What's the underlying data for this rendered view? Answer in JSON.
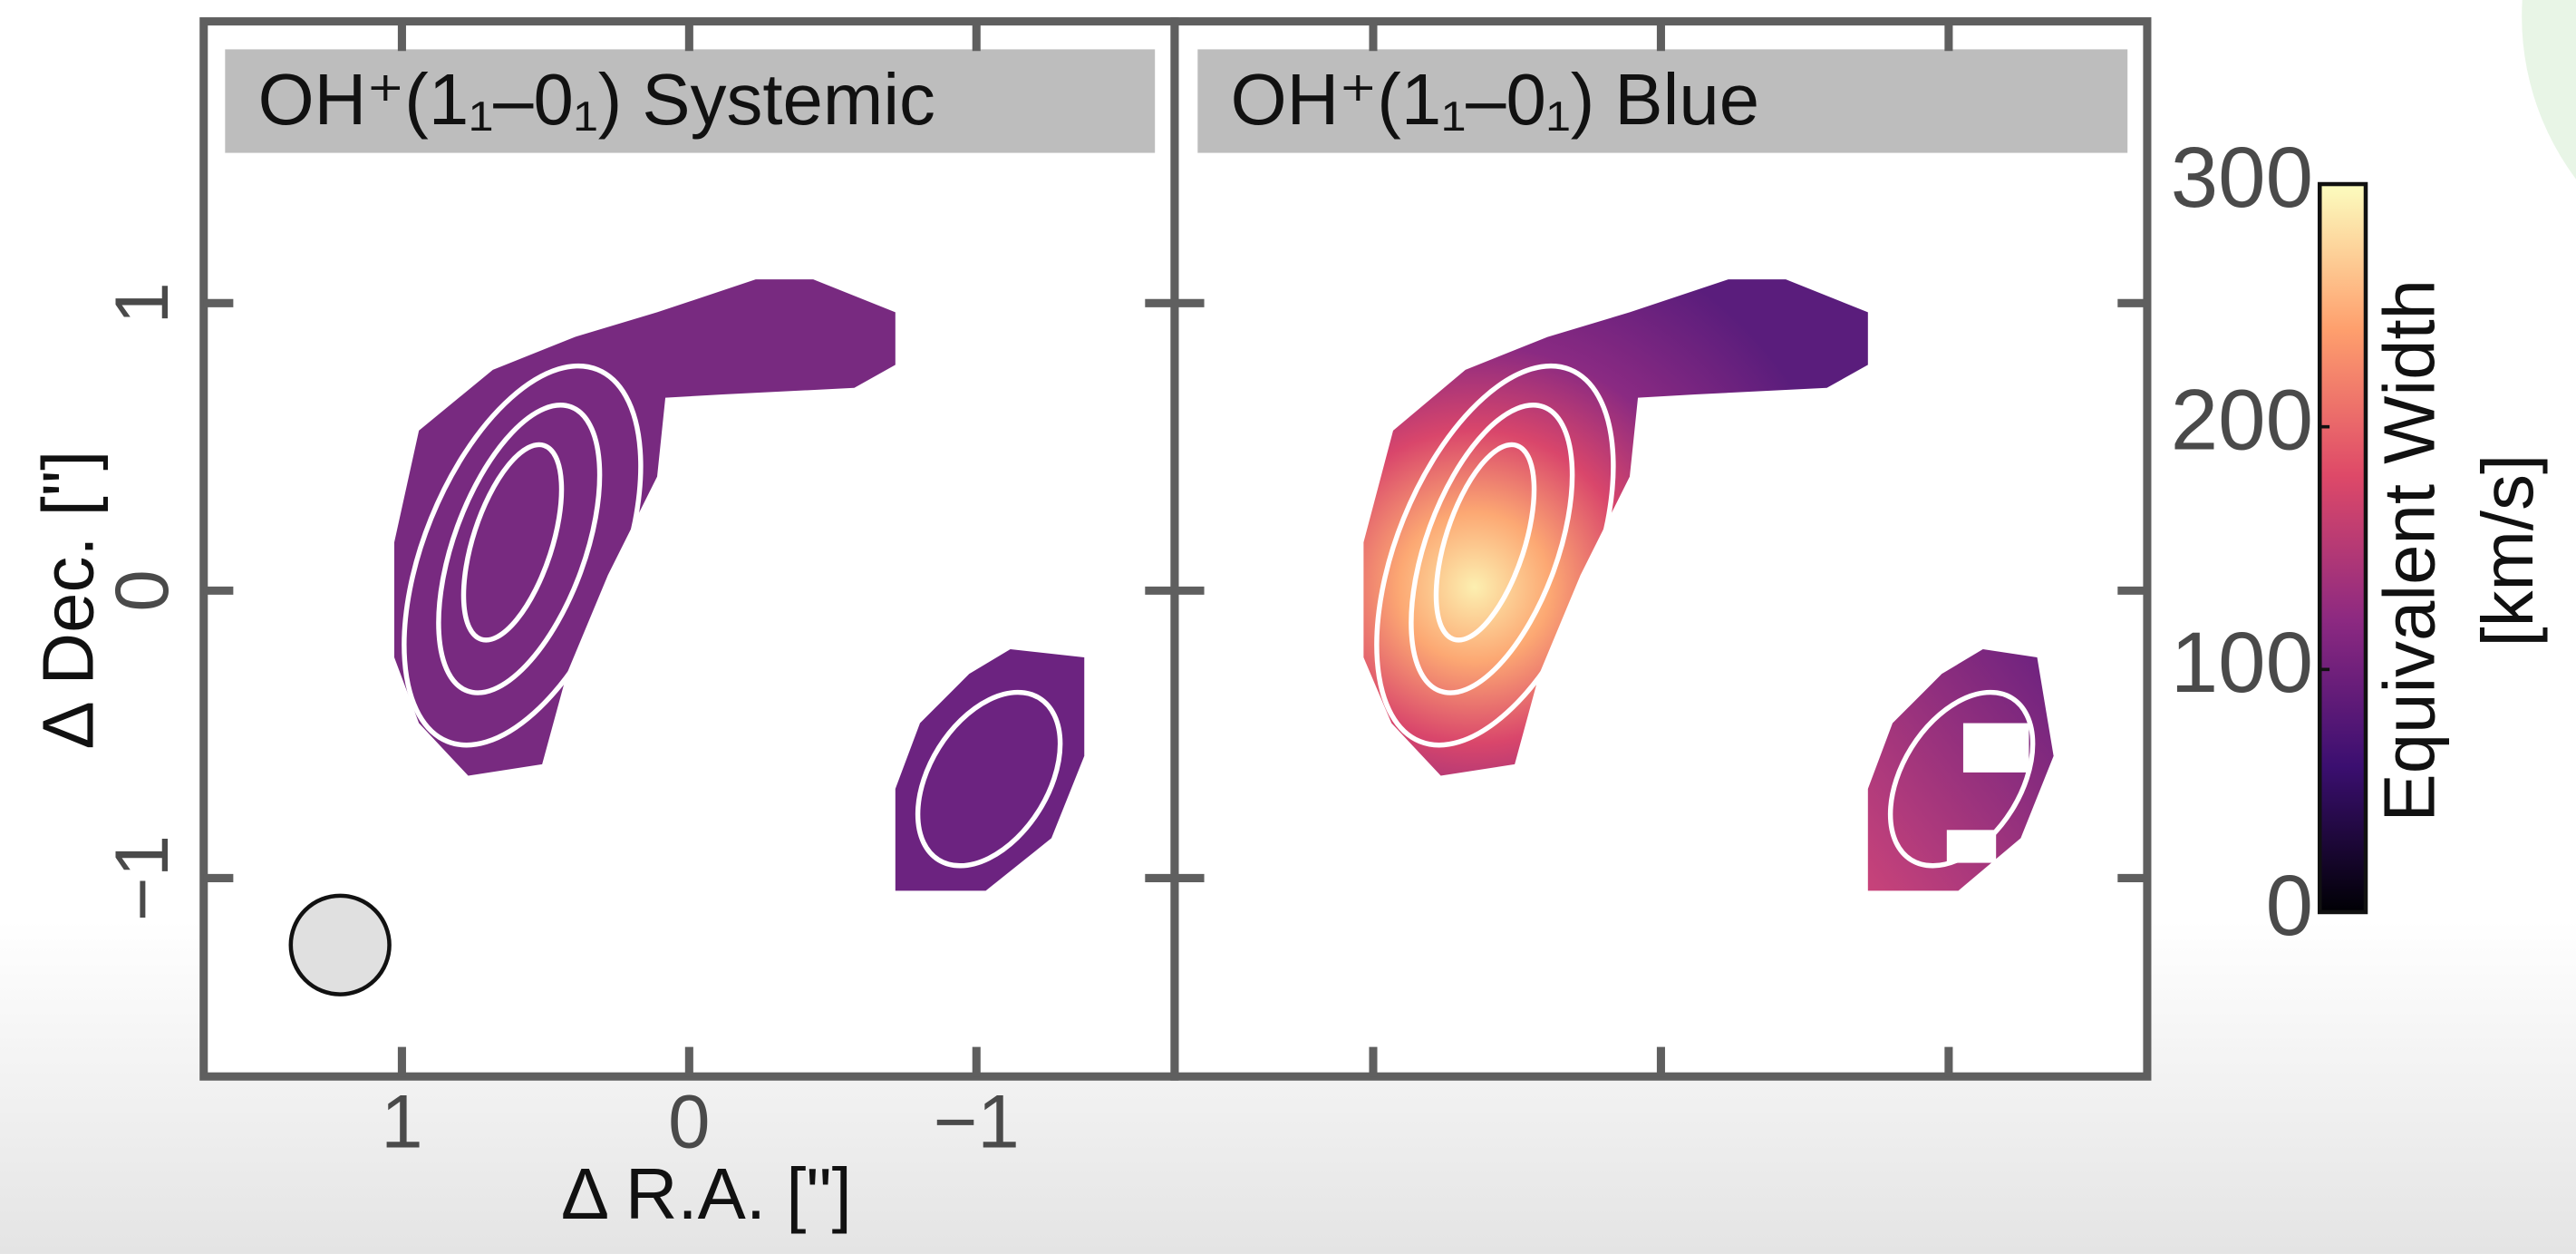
{
  "chart_data": [
    {
      "type": "image",
      "title": "OH⁺(1₁–0₁) Systemic",
      "x_label": "Δ R.A. [\"]",
      "y_label": "Δ Dec. [\"]",
      "xlim": [
        1.69,
        -1.69
      ],
      "ylim": [
        -1.69,
        1.98
      ],
      "xticks": [
        1,
        0,
        {
          "value": -1,
          "label": "−1"
        }
      ],
      "yticks": [
        {
          "value": -1,
          "label": "−1"
        },
        0,
        1
      ],
      "tick_labels": true
    },
    {
      "type": "image",
      "title": "OH⁺(1₁–0₁) Blue",
      "xlim": [
        1.69,
        -1.69
      ],
      "ylim": [
        -1.69,
        1.98
      ],
      "xticks": [
        1,
        0,
        -1
      ],
      "yticks": [
        -1,
        0,
        1
      ],
      "tick_labels": false
    },
    {
      "type": "colorbar",
      "label": "Equivalent Width",
      "unit": "[km/s]",
      "lim": [
        0,
        300
      ],
      "ticks": [
        0,
        100,
        200,
        300
      ],
      "colors": [
        "#000004",
        "#3b0f70",
        "#8c2981",
        "#de4968",
        "#fe9f6d",
        "#fcfdbf"
      ]
    }
  ]
}
